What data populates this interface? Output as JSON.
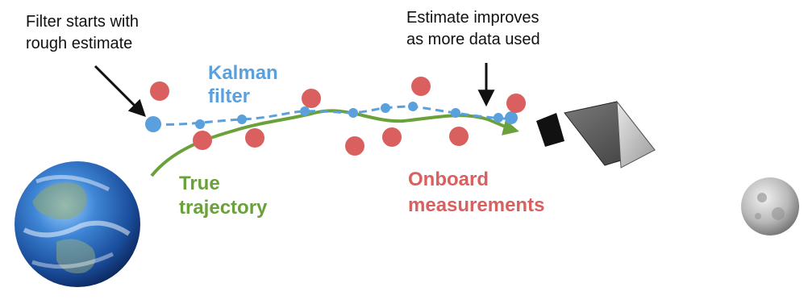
{
  "annotations": {
    "filter_start_line1": "Filter starts with",
    "filter_start_line2": "rough estimate",
    "estimate_line1": "Estimate improves",
    "estimate_line2": "as more data used"
  },
  "labels": {
    "kalman_line1": "Kalman",
    "kalman_line2": "filter",
    "true_line1": "True",
    "true_line2": "trajectory",
    "onboard_line1": "Onboard",
    "onboard_line2": "measurements"
  },
  "colors": {
    "kalman": "#5aa0dc",
    "trajectory": "#6aa13b",
    "measurement": "#d9605e",
    "arrow": "#111111"
  },
  "icons": {
    "earth": "earth-icon",
    "moon": "moon-icon",
    "spacecraft": "spacecraft-icon"
  }
}
